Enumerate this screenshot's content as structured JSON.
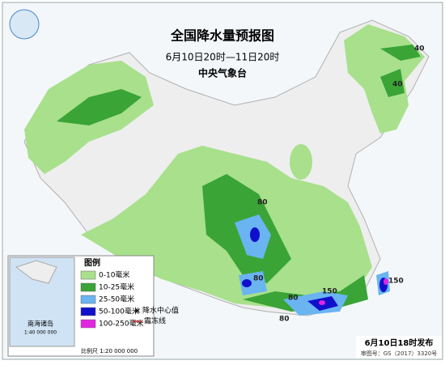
{
  "header": {
    "title": "全国降水量预报图",
    "period": "6月10日20时—11日20时",
    "agency": "中央气象台"
  },
  "legend": {
    "title": "图例",
    "items": [
      {
        "label": "0-10毫米",
        "color": "#a8e08c"
      },
      {
        "label": "10-25毫米",
        "color": "#3aa436"
      },
      {
        "label": "25-50毫米",
        "color": "#6ab4f2"
      },
      {
        "label": "50-100毫米",
        "color": "#1010cc"
      },
      {
        "label": "100-250毫米",
        "color": "#e026e0"
      }
    ],
    "center_label": "降水中心值",
    "frost_label": "霜冻线"
  },
  "centers": [
    40,
    40,
    80,
    80,
    80,
    150,
    150,
    80
  ],
  "inset": {
    "label": "南海诸岛",
    "scale": "1:40 000 000"
  },
  "footer": {
    "issued": "6月10日18时发布",
    "approval": "审图号：GS（2017）3320号",
    "scale": "比例尺 1:20 000 000"
  }
}
